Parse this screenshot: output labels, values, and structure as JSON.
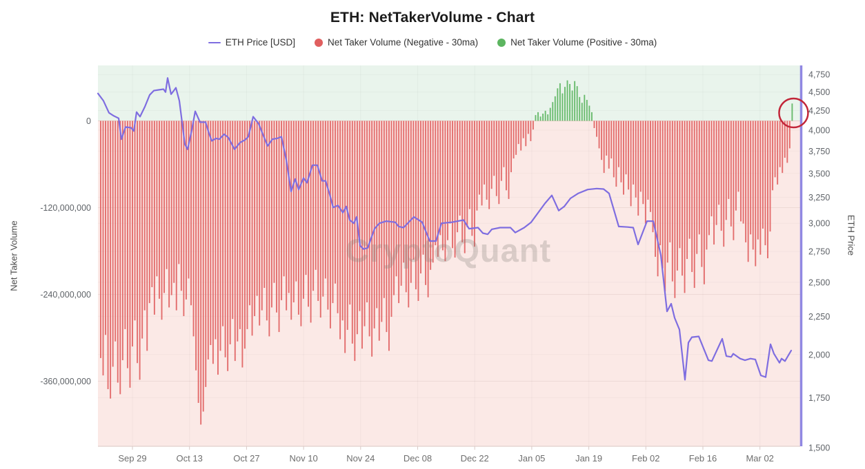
{
  "title": "ETH: NetTakerVolume - Chart",
  "watermark": "CryptoQuant",
  "legend": {
    "items": [
      {
        "label": "ETH Price [USD]",
        "marker": "line",
        "color": "#7e6de0"
      },
      {
        "label": "Net Taker Volume (Negative - 30ma)",
        "marker": "dot",
        "color": "#e05f5f"
      },
      {
        "label": "Net Taker Volume (Positive - 30ma)",
        "marker": "dot",
        "color": "#5cb560"
      }
    ]
  },
  "left_axis": {
    "title": "Net Taker Volume",
    "ticks": [
      {
        "label": "0",
        "value": 0
      },
      {
        "label": "-120,000,000",
        "value": -120
      },
      {
        "label": "-240,000,000",
        "value": -240
      },
      {
        "label": "-360,000,000",
        "value": -360
      }
    ]
  },
  "right_axis": {
    "title": "ETH Price",
    "tick_values": [
      4750,
      4500,
      4250,
      4000,
      3750,
      3500,
      3250,
      3000,
      2750,
      2500,
      2250,
      2000,
      1750,
      1500
    ]
  },
  "x_axis": {
    "labels": [
      "Sep 29",
      "Oct 13",
      "Oct 27",
      "Nov 10",
      "Nov 24",
      "Dec 08",
      "Dec 22",
      "Jan 05",
      "Jan 19",
      "Feb 02",
      "Feb 16",
      "Mar 02"
    ]
  },
  "annotation": {
    "shape": "circle",
    "color": "#c22639",
    "note": "highlights final positive green bar"
  },
  "colors": {
    "price_line": "#7e6de0",
    "right_axis_line": "#9087e2",
    "bar_negative": "#e05f5f",
    "bar_positive": "#5cb560",
    "bg_positive_zone": "#e9f4ec",
    "bg_negative_zone": "#fbe9e6"
  },
  "chart_data": {
    "type": "mixed",
    "left_ylabel": "Net Taker Volume",
    "right_ylabel": "ETH Price",
    "left_ylim_millions": [
      -450,
      95
    ],
    "right_ylim_log": [
      1500,
      4900
    ],
    "grid": "faint-horizontal",
    "legend_position": "top-center",
    "series": [
      {
        "name": "Net Taker Volume (30ma)",
        "type": "bar",
        "axis": "left",
        "unit": "millions USD",
        "values": [
          -328,
          -352,
          -296,
          -371,
          -384,
          -340,
          -305,
          -362,
          -378,
          -331,
          -288,
          -342,
          -369,
          -312,
          -276,
          -335,
          -358,
          -301,
          -262,
          -318,
          -252,
          -230,
          -268,
          -215,
          -246,
          -275,
          -238,
          -205,
          -258,
          -241,
          -224,
          -262,
          -198,
          -235,
          -270,
          -247,
          -218,
          -255,
          -298,
          -345,
          -390,
          -420,
          -402,
          -368,
          -330,
          -310,
          -336,
          -302,
          -351,
          -318,
          -284,
          -327,
          -346,
          -309,
          -274,
          -332,
          -305,
          -288,
          -341,
          -315,
          -288,
          -255,
          -297,
          -270,
          -242,
          -283,
          -262,
          -231,
          -276,
          -298,
          -258,
          -224,
          -265,
          -292,
          -248,
          -215,
          -262,
          -238,
          -275,
          -251,
          -222,
          -268,
          -284,
          -246,
          -213,
          -257,
          -279,
          -235,
          -206,
          -249,
          -272,
          -243,
          -218,
          -261,
          -287,
          -252,
          -225,
          -266,
          -302,
          -276,
          -321,
          -289,
          -254,
          -308,
          -332,
          -295,
          -263,
          -315,
          -284,
          -251,
          -298,
          -326,
          -287,
          -259,
          -304,
          -278,
          -245,
          -292,
          -318,
          -271,
          -241,
          -215,
          -252,
          -228,
          -196,
          -237,
          -258,
          -224,
          -192,
          -233,
          -249,
          -211,
          -185,
          -227,
          -244,
          -206,
          -196,
          -172,
          -188,
          -158,
          -179,
          -194,
          -165,
          -142,
          -176,
          -189,
          -154,
          -131,
          -168,
          -183,
          -147,
          -122,
          -159,
          -174,
          -124,
          -102,
          -117,
          -88,
          -109,
          -122,
          -94,
          -76,
          -104,
          -115,
          -83,
          -64,
          -96,
          -108,
          -71,
          -52,
          -47,
          -32,
          -41,
          -24,
          -35,
          -18,
          -28,
          -12,
          8,
          12,
          6,
          10,
          14,
          9,
          18,
          26,
          34,
          45,
          52,
          38,
          47,
          56,
          51,
          42,
          55,
          48,
          33,
          25,
          36,
          29,
          21,
          12,
          -10,
          -22,
          -38,
          -54,
          -72,
          -48,
          -66,
          -52,
          -78,
          -91,
          -64,
          -85,
          -102,
          -74,
          -95,
          -118,
          -88,
          -106,
          -131,
          -98,
          -115,
          -142,
          -109,
          -126,
          -154,
          -188,
          -215,
          -172,
          -204,
          -236,
          -196,
          -168,
          -222,
          -245,
          -207,
          -176,
          -214,
          -238,
          -191,
          -163,
          -209,
          -231,
          -184,
          -157,
          -202,
          -226,
          -178,
          -158,
          -132,
          -171,
          -144,
          -116,
          -152,
          -174,
          -137,
          -108,
          -146,
          -165,
          -124,
          -98,
          -139,
          -142,
          -168,
          -195,
          -157,
          -178,
          -201,
          -164,
          -185,
          -149,
          -172,
          -190,
          -153,
          -96,
          -78,
          -88,
          -64,
          -72,
          -51,
          -58,
          -38,
          24
        ]
      },
      {
        "name": "ETH Price [USD]",
        "type": "line",
        "axis": "right",
        "points": [
          [
            0,
            4480
          ],
          [
            8,
            4380
          ],
          [
            16,
            4220
          ],
          [
            23,
            4180
          ],
          [
            30,
            4150
          ],
          [
            34,
            3890
          ],
          [
            40,
            4040
          ],
          [
            48,
            4030
          ],
          [
            52,
            3990
          ],
          [
            56,
            4230
          ],
          [
            61,
            4170
          ],
          [
            68,
            4300
          ],
          [
            75,
            4460
          ],
          [
            81,
            4520
          ],
          [
            88,
            4530
          ],
          [
            95,
            4540
          ],
          [
            98,
            4500
          ],
          [
            101,
            4700
          ],
          [
            106,
            4470
          ],
          [
            110,
            4520
          ],
          [
            113,
            4560
          ],
          [
            118,
            4380
          ],
          [
            126,
            3830
          ],
          [
            130,
            3770
          ],
          [
            136,
            4000
          ],
          [
            141,
            4240
          ],
          [
            148,
            4100
          ],
          [
            156,
            4100
          ],
          [
            161,
            3960
          ],
          [
            165,
            3870
          ],
          [
            171,
            3900
          ],
          [
            176,
            3890
          ],
          [
            183,
            3950
          ],
          [
            189,
            3910
          ],
          [
            198,
            3770
          ],
          [
            206,
            3850
          ],
          [
            213,
            3880
          ],
          [
            218,
            3920
          ],
          [
            225,
            4170
          ],
          [
            233,
            4080
          ],
          [
            239,
            3950
          ],
          [
            246,
            3810
          ],
          [
            253,
            3890
          ],
          [
            260,
            3900
          ],
          [
            266,
            3920
          ],
          [
            273,
            3650
          ],
          [
            280,
            3310
          ],
          [
            286,
            3440
          ],
          [
            291,
            3330
          ],
          [
            298,
            3450
          ],
          [
            303,
            3400
          ],
          [
            311,
            3590
          ],
          [
            318,
            3590
          ],
          [
            325,
            3420
          ],
          [
            330,
            3420
          ],
          [
            336,
            3280
          ],
          [
            341,
            3150
          ],
          [
            348,
            3170
          ],
          [
            355,
            3100
          ],
          [
            360,
            3160
          ],
          [
            365,
            3030
          ],
          [
            371,
            3000
          ],
          [
            375,
            3060
          ],
          [
            380,
            2800
          ],
          [
            385,
            2770
          ],
          [
            391,
            2780
          ],
          [
            401,
            2950
          ],
          [
            408,
            3000
          ],
          [
            418,
            3020
          ],
          [
            431,
            3010
          ],
          [
            436,
            2970
          ],
          [
            443,
            2960
          ],
          [
            458,
            3060
          ],
          [
            470,
            3010
          ],
          [
            481,
            2840
          ],
          [
            490,
            2840
          ],
          [
            498,
            3000
          ],
          [
            513,
            3010
          ],
          [
            530,
            3030
          ],
          [
            538,
            2950
          ],
          [
            551,
            2960
          ],
          [
            558,
            2910
          ],
          [
            565,
            2900
          ],
          [
            571,
            2945
          ],
          [
            583,
            2960
          ],
          [
            598,
            2960
          ],
          [
            605,
            2915
          ],
          [
            618,
            2960
          ],
          [
            628,
            3010
          ],
          [
            648,
            3190
          ],
          [
            658,
            3270
          ],
          [
            668,
            3120
          ],
          [
            676,
            3160
          ],
          [
            685,
            3240
          ],
          [
            696,
            3290
          ],
          [
            710,
            3330
          ],
          [
            723,
            3340
          ],
          [
            733,
            3335
          ],
          [
            741,
            3290
          ],
          [
            755,
            2970
          ],
          [
            768,
            2965
          ],
          [
            776,
            2960
          ],
          [
            783,
            2810
          ],
          [
            796,
            3020
          ],
          [
            805,
            3020
          ],
          [
            813,
            2800
          ],
          [
            816,
            2720
          ],
          [
            825,
            2285
          ],
          [
            831,
            2340
          ],
          [
            836,
            2240
          ],
          [
            843,
            2160
          ],
          [
            851,
            1850
          ],
          [
            856,
            2075
          ],
          [
            861,
            2110
          ],
          [
            871,
            2115
          ],
          [
            885,
            1965
          ],
          [
            890,
            1960
          ],
          [
            905,
            2100
          ],
          [
            911,
            1990
          ],
          [
            918,
            1985
          ],
          [
            921,
            2005
          ],
          [
            931,
            1975
          ],
          [
            938,
            1965
          ],
          [
            946,
            1975
          ],
          [
            953,
            1970
          ],
          [
            961,
            1875
          ],
          [
            968,
            1865
          ],
          [
            975,
            2065
          ],
          [
            980,
            2005
          ],
          [
            988,
            1950
          ],
          [
            991,
            1975
          ],
          [
            996,
            1960
          ],
          [
            1005,
            2025
          ]
        ]
      }
    ]
  }
}
